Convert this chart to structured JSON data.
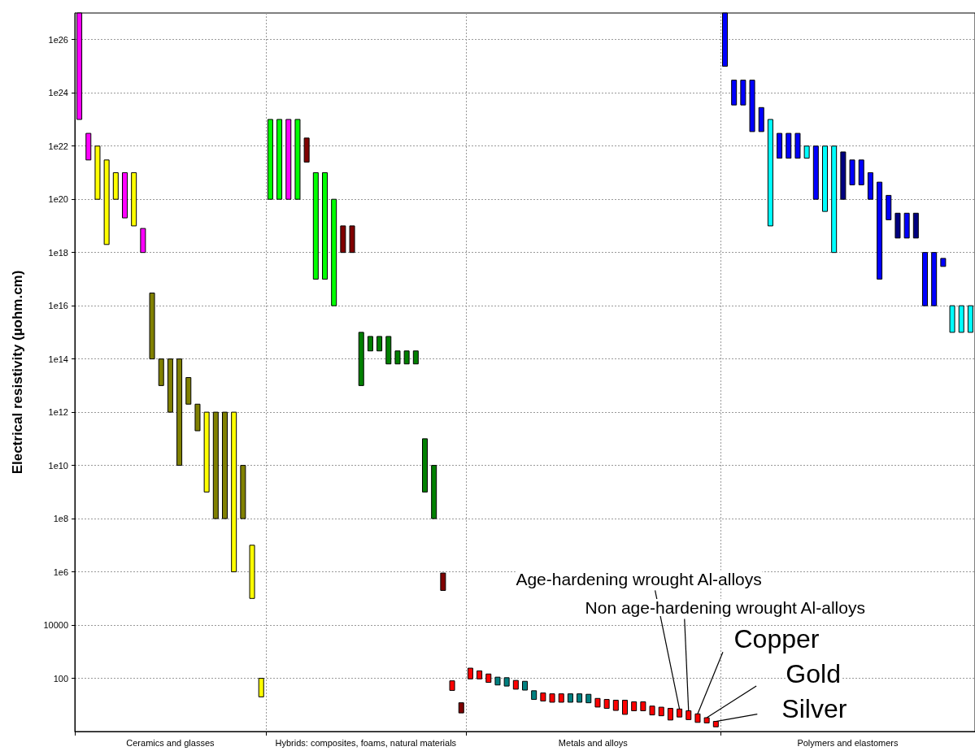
{
  "chart_data": {
    "type": "bar",
    "ylabel": "Electrical resistivity (µohm.cm)",
    "categories": [
      null,
      null,
      null,
      null,
      null,
      null,
      null,
      null,
      null,
      null,
      null,
      null,
      null,
      null,
      null,
      null,
      null,
      null,
      null,
      null,
      null,
      null,
      null,
      null,
      null,
      null,
      null,
      null,
      null,
      null,
      null,
      null,
      null,
      null,
      null,
      null,
      null,
      null,
      null,
      null,
      null,
      null,
      null,
      null,
      null,
      null,
      null,
      null,
      null,
      null,
      null,
      null,
      null,
      null,
      null,
      null,
      null,
      null,
      null,
      null,
      null,
      null,
      null,
      null,
      null,
      null,
      null,
      null,
      null,
      null,
      null,
      null,
      null,
      null,
      null,
      null,
      null,
      null,
      null,
      null,
      null,
      null,
      null,
      null,
      null,
      null,
      null,
      null,
      null,
      null,
      null,
      null,
      null,
      null,
      null,
      null,
      null,
      null,
      null
    ],
    "base": [
      1e+23,
      3e+21,
      1e+20,
      2e+18,
      1e+20,
      2e+19,
      1e+19,
      1e+18,
      100000000000000.0,
      10000000000000.0,
      1000000000000.0,
      10000000000.0,
      2000000000000.0,
      200000000000.0,
      1000000000.0,
      100000000.0,
      100000000.0,
      1000000.0,
      100000000.0,
      100000.0,
      20,
      1e+20,
      1e+20,
      1e+20,
      1e+20,
      2.5e+21,
      1e+17,
      1e+17,
      1e+16,
      1e+18,
      1e+18,
      10000000000000.0,
      200000000000000.0,
      200000000000000.0,
      65000000000000.0,
      65000000000000.0,
      65000000000000.0,
      65000000000000.0,
      1000000000.0,
      100000000.0,
      200000.0,
      35,
      5,
      95,
      95,
      70,
      56,
      51,
      39,
      36,
      16,
      14,
      12.6,
      12.6,
      12.6,
      12.6,
      12,
      8.3,
      7.4,
      6.2,
      4.4,
      6,
      6,
      4.2,
      3.9,
      2.7,
      3.5,
      2.8,
      2.2,
      2.1,
      1.5,
      1e+25,
      3.5e+23,
      3.5e+23,
      3.5e+22,
      3.5e+22,
      1e+19,
      3.5e+21,
      3.5e+21,
      3.5e+21,
      3.5e+21,
      1e+20,
      3.5e+19,
      1e+18,
      1e+20,
      3.5e+20,
      3.5e+20,
      1e+20,
      1e+17,
      1.7e+19,
      3.5e+18,
      3.5e+18,
      3.5e+18,
      1e+16,
      1e+16,
      3e+17,
      1000000000000000.0,
      1000000000000000.0,
      1000000000000000.0
    ],
    "values": [
      9.999e+26,
      2.7e+22,
      9.9e+21,
      2.998e+21,
      9e+20,
      9.8e+20,
      9.9e+20,
      7e+18,
      2.99e+16,
      90000000000000.0,
      99000000000000.0,
      99990000000000.0,
      18000000000000.0,
      1800000000000.0,
      999000000000.0,
      999900000000.0,
      999900000000.0,
      999999000000.0,
      9900000000.0,
      9900000.0,
      80,
      9.99e+22,
      9.99e+22,
      9.99e+22,
      9.99e+22,
      1.75e+22,
      9.999e+20,
      9.999e+20,
      9.999e+19,
      9e+18,
      9e+18,
      990000000000000.0,
      500000000000000.0,
      500000000000000.0,
      635000000000000.0,
      135000000000000.0,
      135000000000000.0,
      135000000000000.0,
      99000000000.0,
      9900000000.0,
      700000.0,
      45,
      7,
      145,
      95,
      75,
      54,
      54,
      44,
      41,
      18,
      14,
      13.4,
      13.4,
      13.4,
      13.4,
      13,
      9.2,
      8.6,
      8.8,
      10.6,
      7,
      7,
      4.8,
      4.3,
      4.7,
      3.5,
      3.2,
      2.4,
      1.2,
      0.9,
      9.9e+26,
      2.65e+24,
      2.65e+24,
      2.965e+24,
      2.45e+23,
      9.999e+22,
      2.65e+22,
      2.65e+22,
      2.65e+22,
      6.5e+21,
      9.9e+21,
      9.965e+21,
      9.9999e+21,
      5.9e+21,
      2.65e+21,
      2.65e+21,
      9e+20,
      4.399e+20,
      1.23e+20,
      2.65e+19,
      2.65e+19,
      2.65e+19,
      9.9e+17,
      9.9e+17,
      3e+17,
      9000000000000000.0,
      9000000000000000.0,
      9000000000000000.0
    ],
    "colors": [
      "#ff00ff",
      "#ff00ff",
      "#ffff00",
      "#ffff00",
      "#ffff00",
      "#ff00ff",
      "#ffff00",
      "#ff00ff",
      "#808000",
      "#808000",
      "#808000",
      "#808000",
      "#808000",
      "#808000",
      "#ffff00",
      "#808000",
      "#808000",
      "#ffff00",
      "#808000",
      "#ffff00",
      "#ffff00",
      "#00ff00",
      "#00ff00",
      "#ff00ff",
      "#00ff00",
      "#800000",
      "#00ff00",
      "#00ff00",
      "#00ff00",
      "#800000",
      "#800000",
      "#008000",
      "#008000",
      "#008000",
      "#008000",
      "#008000",
      "#008000",
      "#008000",
      "#008000",
      "#008000",
      "#800000",
      "#ff0000",
      "#800000",
      "#ff0000",
      "#ff0000",
      "#ff0000",
      "#008080",
      "#008080",
      "#ff0000",
      "#008080",
      "#008080",
      "#ff0000",
      "#ff0000",
      "#ff0000",
      "#008080",
      "#008080",
      "#008080",
      "#ff0000",
      "#ff0000",
      "#ff0000",
      "#ff0000",
      "#ff0000",
      "#ff0000",
      "#ff0000",
      "#ff0000",
      "#ff0000",
      "#ff0000",
      "#ff0000",
      "#ff0000",
      "#ff0000",
      "#ff0000",
      "#0000ff",
      "#0000ff",
      "#0000ff",
      "#0000ff",
      "#0000ff",
      "#00ffff",
      "#0000ff",
      "#0000ff",
      "#0000ff",
      "#00ffff",
      "#0000ff",
      "#00ffff",
      "#00ffff",
      "#000080",
      "#0000ff",
      "#0000ff",
      "#0000ff",
      "#0000ff",
      "#0000ff",
      "#000080",
      "#0000ff",
      "#000080",
      "#0000ff",
      "#0000ff",
      "#0000ff",
      "#00ffff",
      "#00ffff",
      "#00ffff"
    ],
    "ylim": [
      1,
      1e+27
    ],
    "yticks": [
      100,
      10000,
      {
        "value": 1000000.0,
        "label": "1e6"
      },
      {
        "value": 100000000.0,
        "label": "1e8"
      },
      {
        "value": 10000000000.0,
        "label": "1e10"
      },
      {
        "value": 1000000000000.0,
        "label": "1e12"
      },
      {
        "value": 100000000000000.0,
        "label": "1e14"
      },
      {
        "value": 1e+16,
        "label": "1e16"
      },
      {
        "value": 1e+18,
        "label": "1e18"
      },
      {
        "value": 1e+20,
        "label": "1e20"
      },
      {
        "value": 1e+22,
        "label": "1e22"
      },
      {
        "value": 1e+24,
        "label": "1e24"
      },
      {
        "value": 1e+26,
        "label": "1e26"
      }
    ],
    "log": true,
    "grid": true,
    "annotations": [
      "Age-hardening wrought Al-alloys",
      "Non age-hardening wrought Al-alloys",
      "Copper",
      "Gold",
      "Silver",
      "Ceramics and glasses",
      "Hybrids: composites, foams, natural materials",
      "Metals and alloys",
      "Polymers and elastomers"
    ]
  }
}
